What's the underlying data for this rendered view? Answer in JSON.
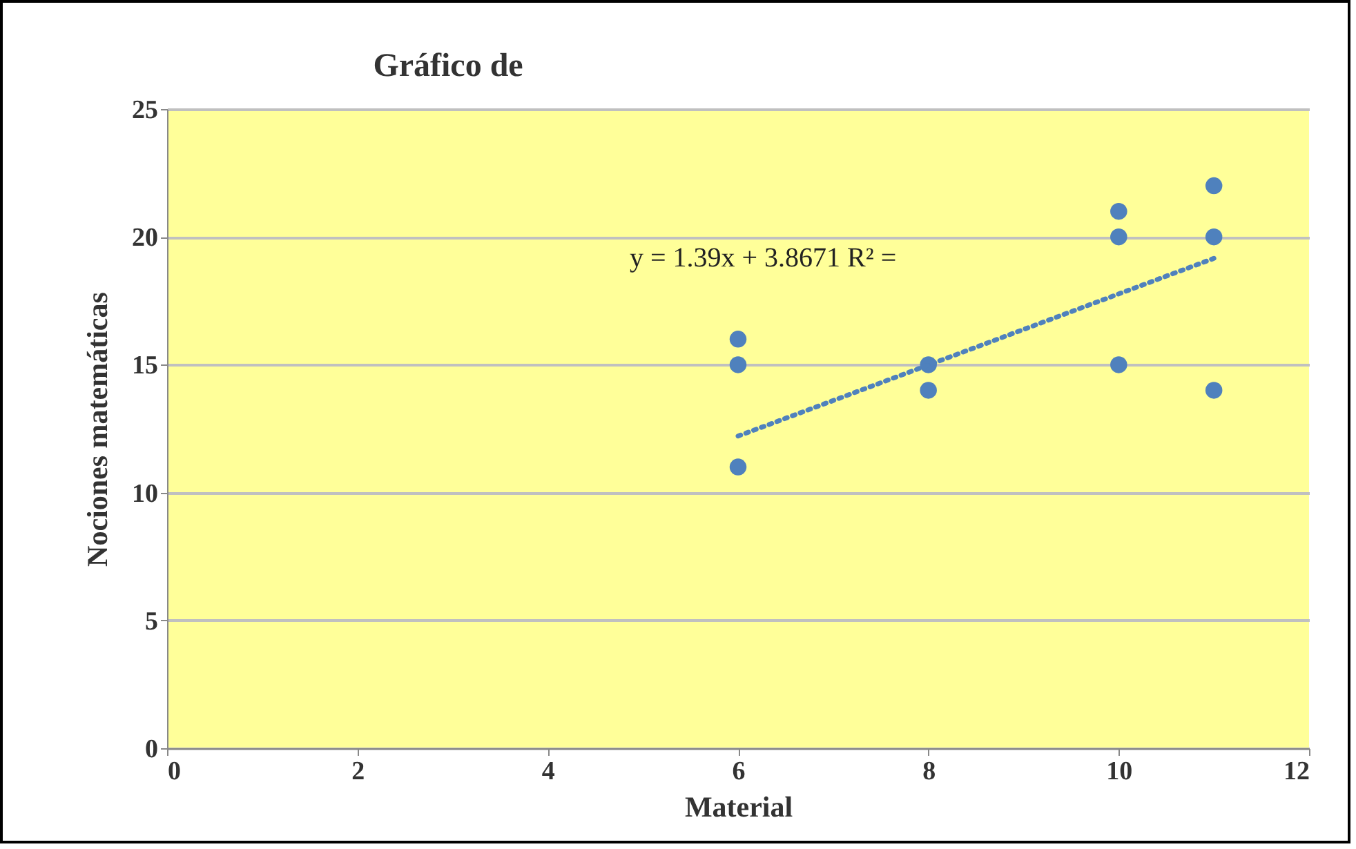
{
  "chart_data": {
    "type": "scatter",
    "title": "Gráfico de",
    "xlabel": "Material",
    "ylabel": "Nociones matemáticas",
    "xlim": [
      0,
      12
    ],
    "xticks": [
      0,
      2,
      4,
      6,
      8,
      10,
      12
    ],
    "ylim": [
      0,
      25
    ],
    "yticks": [
      0,
      5,
      10,
      15,
      20,
      25
    ],
    "grid": "y",
    "series": [
      {
        "color": "#4f81bd",
        "marker": "circle",
        "x": [
          6,
          6,
          6,
          8,
          8,
          10,
          10,
          10,
          11,
          11,
          11
        ],
        "values": [
          16,
          15,
          11,
          15,
          14,
          21,
          20,
          15,
          22,
          20,
          14
        ]
      },
      {
        "type": "line",
        "color": "#4f81bd",
        "line_style": "dotted",
        "x": [
          6,
          11
        ],
        "values": [
          12.21,
          19.16
        ]
      }
    ],
    "annotations": [
      "y = 1.39x + 3.8671 R² ="
    ]
  }
}
